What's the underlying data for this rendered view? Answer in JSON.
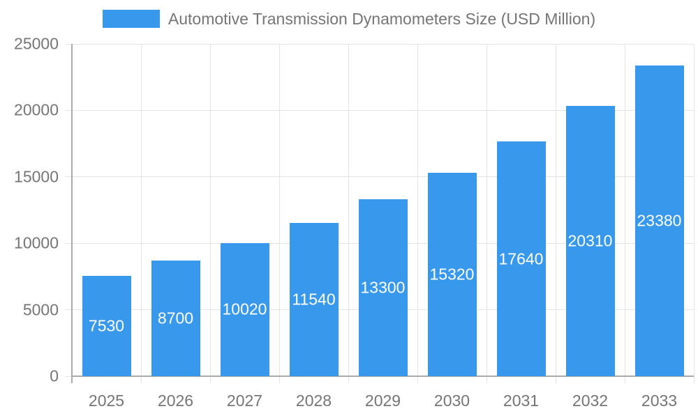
{
  "chart_data": {
    "type": "bar",
    "title": "Automotive Transmission Dynamometers Size (USD Million)",
    "categories": [
      "2025",
      "2026",
      "2027",
      "2028",
      "2029",
      "2030",
      "2031",
      "2032",
      "2033"
    ],
    "values": [
      7530,
      8700,
      10020,
      11540,
      13300,
      15320,
      17640,
      20310,
      23380
    ],
    "xlabel": "",
    "ylabel": "",
    "ylim": [
      0,
      25000
    ],
    "yticks": [
      0,
      5000,
      10000,
      15000,
      20000,
      25000
    ],
    "grid": true,
    "legend_position": "top",
    "value_labels": "centered-inside-bars",
    "colors": {
      "bar": "#3899EC",
      "value_label": "#FFFFFF",
      "tick_label": "#757575",
      "legend_text": "#757575",
      "gridline": "#E4E4E4",
      "axis_line": "#ABABAB",
      "background": "#FFFFFF"
    }
  }
}
